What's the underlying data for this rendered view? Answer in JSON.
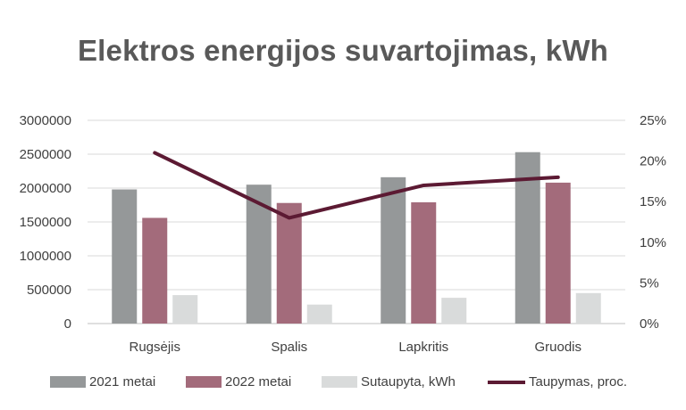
{
  "chart_data": {
    "type": "bar",
    "title": "Elektros energijos suvartojimas, kWh",
    "categories": [
      "Rugsėjis",
      "Spalis",
      "Lapkritis",
      "Gruodis"
    ],
    "series": [
      {
        "name": "2021 metai",
        "type": "bar",
        "axis": "left",
        "color": "#959899",
        "values": [
          1980000,
          2050000,
          2160000,
          2530000
        ]
      },
      {
        "name": "2022 metai",
        "type": "bar",
        "axis": "left",
        "color": "#A36B7B",
        "values": [
          1560000,
          1780000,
          1790000,
          2080000
        ]
      },
      {
        "name": "Sutaupyta, kWh",
        "type": "bar",
        "axis": "left",
        "color": "#D9DBDB",
        "values": [
          420000,
          280000,
          380000,
          450000
        ]
      },
      {
        "name": "Taupymas, proc.",
        "type": "line",
        "axis": "right",
        "color": "#5C1A33",
        "values": [
          21,
          13,
          17,
          18
        ]
      }
    ],
    "y_left": {
      "min": 0,
      "max": 3000000,
      "ticks": [
        "0",
        "500000",
        "1000000",
        "1500000",
        "2000000",
        "2500000",
        "3000000"
      ]
    },
    "y_right": {
      "min": 0,
      "max": 25,
      "ticks": [
        "0%",
        "5%",
        "10%",
        "15%",
        "20%",
        "25%"
      ]
    },
    "grid": true,
    "legend_position": "bottom"
  }
}
